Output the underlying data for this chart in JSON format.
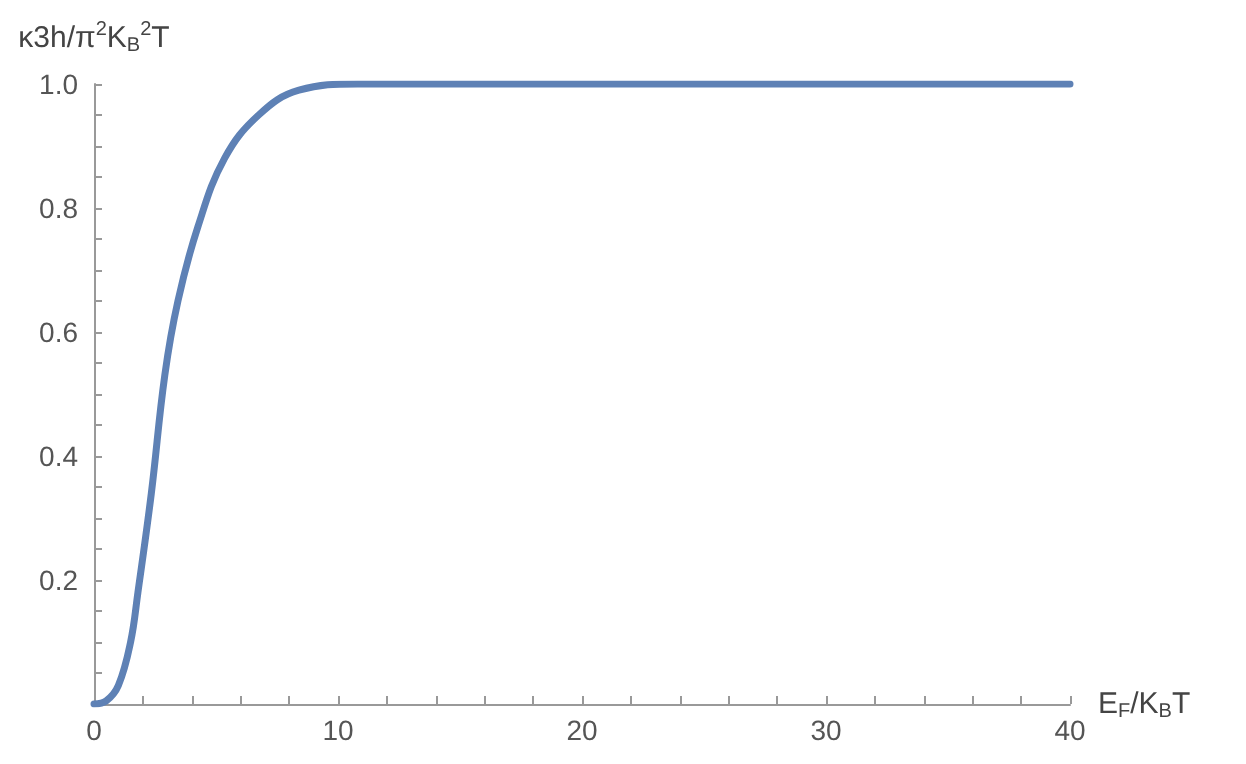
{
  "chart_data": {
    "type": "line",
    "xlabel": "E$_{F}$/K$_{B}$T",
    "ylabel": "κ3h/π$^{2}$K$_{B}$$^{2}$T",
    "series": [
      {
        "color": "#5e81b5",
        "x": [
          0,
          0.5,
          1,
          1.5,
          1.8,
          2.35,
          2.9,
          3.44,
          4.26,
          5.35,
          6.75,
          8.4,
          10.8,
          15,
          20,
          30,
          40
        ],
        "values": [
          0,
          0.005,
          0.03,
          0.1,
          0.18,
          0.34,
          0.53,
          0.65,
          0.77,
          0.88,
          0.95,
          0.99,
          1.0,
          1,
          1,
          1,
          1
        ]
      }
    ],
    "xlim": [
      0,
      40
    ],
    "ylim": [
      0,
      1
    ],
    "xticks": [
      0,
      {
        "value": 2,
        "label": null
      },
      {
        "value": 4,
        "label": null
      },
      {
        "value": 6,
        "label": null
      },
      {
        "value": 8,
        "label": null
      },
      10,
      {
        "value": 12,
        "label": null
      },
      {
        "value": 14,
        "label": null
      },
      {
        "value": 16,
        "label": null
      },
      {
        "value": 18,
        "label": null
      },
      20,
      {
        "value": 22,
        "label": null
      },
      {
        "value": 24,
        "label": null
      },
      {
        "value": 26,
        "label": null
      },
      {
        "value": 28,
        "label": null
      },
      30,
      {
        "value": 32,
        "label": null
      },
      {
        "value": 34,
        "label": null
      },
      {
        "value": 36,
        "label": null
      },
      {
        "value": 38,
        "label": null
      },
      40
    ],
    "yticks": [
      {
        "value": 0,
        "label": null
      },
      {
        "value": 0.05,
        "label": null
      },
      {
        "value": 0.1,
        "label": null
      },
      {
        "value": 0.15,
        "label": null
      },
      0.2,
      {
        "value": 0.25,
        "label": null
      },
      {
        "value": 0.3,
        "label": null
      },
      {
        "value": 0.35,
        "label": null
      },
      0.4,
      {
        "value": 0.45,
        "label": null
      },
      {
        "value": 0.5,
        "label": null
      },
      {
        "value": 0.55,
        "label": null
      },
      0.6,
      {
        "value": 0.65,
        "label": null
      },
      {
        "value": 0.7,
        "label": null
      },
      {
        "value": 0.75,
        "label": null
      },
      0.8,
      {
        "value": 0.85,
        "label": null
      },
      {
        "value": 0.9,
        "label": null
      },
      {
        "value": 0.95,
        "label": null
      },
      {
        "value": 1,
        "label": "1.0"
      }
    ],
    "grid": false,
    "marker": "none",
    "line_style": "solid"
  }
}
